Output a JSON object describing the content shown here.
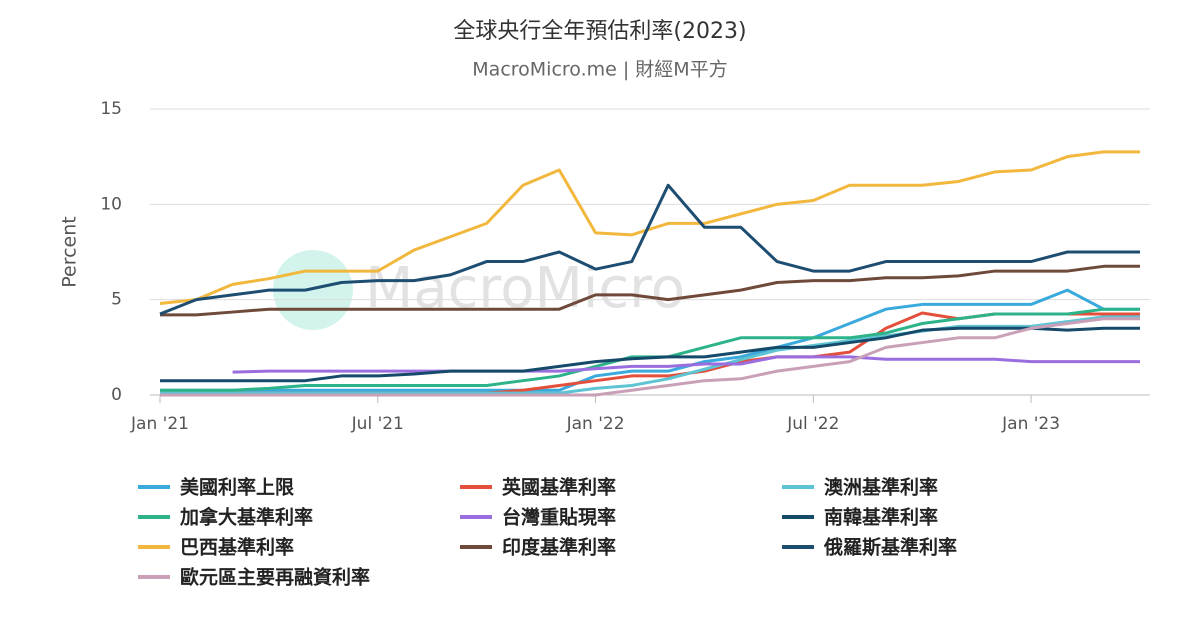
{
  "chart_data": {
    "type": "line",
    "title": "全球央行全年預估利率(2023)",
    "subtitle": "MacroMicro.me | 財經M平方",
    "watermark": "MacroMicro",
    "y_label": "Percent",
    "x": [
      "2021-01",
      "2021-02",
      "2021-03",
      "2021-04",
      "2021-05",
      "2021-06",
      "2021-07",
      "2021-08",
      "2021-09",
      "2021-10",
      "2021-11",
      "2021-12",
      "2022-01",
      "2022-02",
      "2022-03",
      "2022-04",
      "2022-05",
      "2022-06",
      "2022-07",
      "2022-08",
      "2022-09",
      "2022-10",
      "2022-11",
      "2022-12",
      "2023-01",
      "2023-02",
      "2023-03",
      "2023-04"
    ],
    "xticks": [
      {
        "value": "2021-01",
        "label": "Jan '21"
      },
      {
        "value": "2021-07",
        "label": "Jul '21"
      },
      {
        "value": "2022-01",
        "label": "Jan '22"
      },
      {
        "value": "2022-07",
        "label": "Jul '22"
      },
      {
        "value": "2023-01",
        "label": "Jan '23"
      }
    ],
    "ylim": [
      0,
      15
    ],
    "yticks": [
      0,
      5,
      10,
      15
    ],
    "grid": true,
    "series": [
      {
        "name": "美國利率上限",
        "color": "#3aa9dc",
        "values": [
          0.25,
          0.25,
          0.25,
          0.25,
          0.25,
          0.25,
          0.25,
          0.25,
          0.25,
          0.25,
          0.25,
          0.25,
          1.0,
          1.25,
          1.25,
          1.75,
          2.0,
          2.5,
          3.0,
          3.75,
          4.5,
          4.75,
          4.75,
          4.75,
          4.75,
          5.5,
          4.5,
          4.5
        ]
      },
      {
        "name": "英國基準利率",
        "color": "#e34f3b",
        "values": [
          0.1,
          0.1,
          0.1,
          0.1,
          0.1,
          0.1,
          0.1,
          0.1,
          0.1,
          0.1,
          0.25,
          0.5,
          0.75,
          1.0,
          1.0,
          1.25,
          1.75,
          2.0,
          2.0,
          2.25,
          3.5,
          4.3,
          4.0,
          4.25,
          4.25,
          4.25,
          4.25,
          4.25
        ]
      },
      {
        "name": "澳洲基準利率",
        "color": "#5ec4d3",
        "values": [
          0.1,
          0.1,
          0.1,
          0.1,
          0.1,
          0.1,
          0.1,
          0.1,
          0.1,
          0.1,
          0.1,
          0.1,
          0.35,
          0.5,
          0.85,
          1.35,
          1.85,
          2.35,
          2.6,
          2.85,
          3.1,
          3.35,
          3.6,
          3.6,
          3.6,
          3.85,
          4.1,
          4.1
        ]
      },
      {
        "name": "加拿大基準利率",
        "color": "#2db38a",
        "values": [
          0.25,
          0.25,
          0.25,
          0.35,
          0.5,
          0.5,
          0.5,
          0.5,
          0.5,
          0.5,
          0.75,
          1.0,
          1.5,
          2.0,
          2.0,
          2.5,
          3.0,
          3.0,
          3.0,
          3.0,
          3.25,
          3.75,
          4.0,
          4.25,
          4.25,
          4.25,
          4.5,
          4.5
        ]
      },
      {
        "name": "台灣重貼現率",
        "color": "#9b6ee0",
        "values": [
          null,
          null,
          1.2,
          1.25,
          1.25,
          1.25,
          1.25,
          1.25,
          1.25,
          1.25,
          1.25,
          1.25,
          1.375,
          1.5,
          1.5,
          1.625,
          1.625,
          2.0,
          2.0,
          2.0,
          1.875,
          1.875,
          1.875,
          1.875,
          1.75,
          1.75,
          1.75,
          1.75
        ]
      },
      {
        "name": "南韓基準利率",
        "color": "#154a6b",
        "values": [
          0.75,
          0.75,
          0.75,
          0.75,
          0.75,
          1.0,
          1.0,
          1.1,
          1.25,
          1.25,
          1.25,
          1.5,
          1.75,
          1.9,
          2.0,
          2.0,
          2.25,
          2.5,
          2.5,
          2.75,
          3.0,
          3.4,
          3.5,
          3.5,
          3.5,
          3.4,
          3.5,
          3.5
        ]
      },
      {
        "name": "巴西基準利率",
        "color": "#f2b73d",
        "values": [
          4.8,
          5.0,
          5.8,
          6.1,
          6.5,
          6.5,
          6.5,
          7.6,
          8.3,
          9.0,
          11.0,
          11.8,
          8.5,
          8.4,
          9.0,
          9.0,
          9.5,
          10.0,
          10.2,
          11.0,
          11.0,
          11.0,
          11.2,
          11.7,
          11.8,
          12.5,
          12.75,
          12.75
        ]
      },
      {
        "name": "印度基準利率",
        "color": "#6f4a3a",
        "values": [
          4.2,
          4.2,
          4.35,
          4.5,
          4.5,
          4.5,
          4.5,
          4.5,
          4.5,
          4.5,
          4.5,
          4.5,
          5.25,
          5.25,
          5.0,
          5.25,
          5.5,
          5.9,
          6.0,
          6.0,
          6.15,
          6.15,
          6.25,
          6.5,
          6.5,
          6.5,
          6.75,
          6.75
        ]
      },
      {
        "name": "俄羅斯基準利率",
        "color": "#1e4d72",
        "values": [
          4.25,
          5.0,
          5.25,
          5.5,
          5.5,
          5.9,
          6.0,
          6.0,
          6.3,
          7.0,
          7.0,
          7.5,
          6.6,
          7.0,
          11.0,
          8.8,
          8.8,
          7.0,
          6.5,
          6.5,
          7.0,
          7.0,
          7.0,
          7.0,
          7.0,
          7.5,
          7.5,
          7.5
        ]
      },
      {
        "name": "歐元區主要再融資利率",
        "color": "#c9a0b8",
        "values": [
          0,
          0,
          0,
          0,
          0,
          0,
          0,
          0,
          0,
          0,
          0,
          0,
          0,
          0.25,
          0.5,
          0.75,
          0.85,
          1.25,
          1.5,
          1.75,
          2.5,
          2.75,
          3.0,
          3.0,
          3.5,
          3.75,
          4.0,
          4.0
        ]
      }
    ]
  }
}
